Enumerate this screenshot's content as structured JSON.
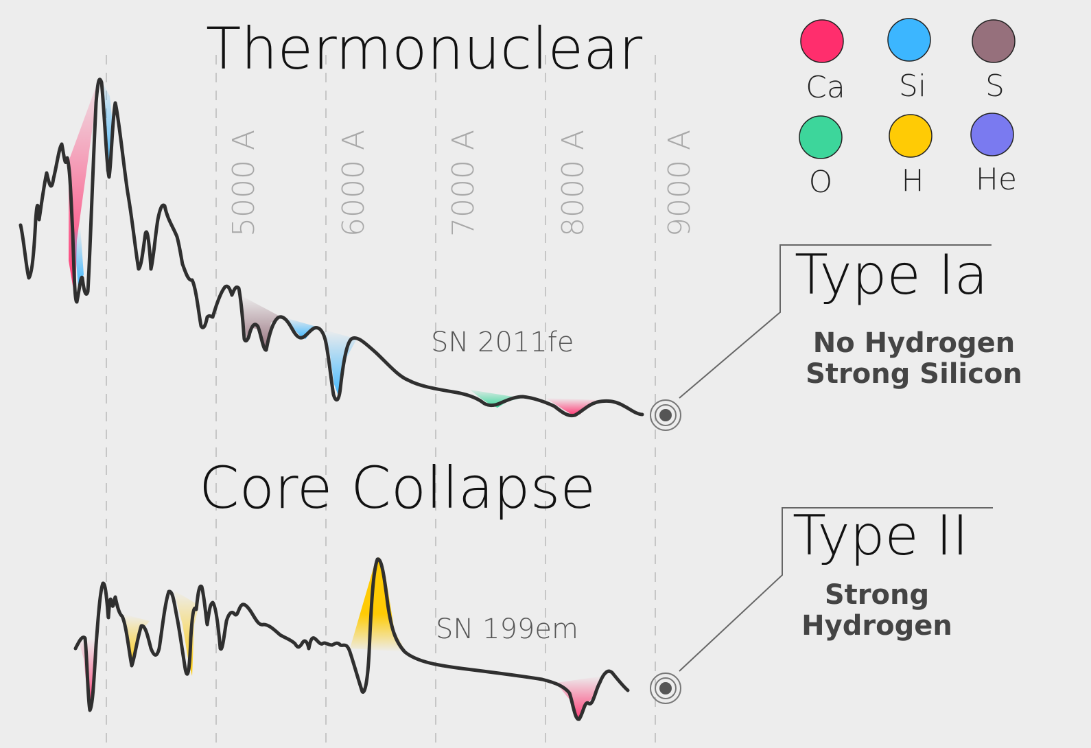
{
  "thermonuclear": {
    "title": "Thermonuclear",
    "sn_label": "SN 2011fe",
    "type_title": "Type Ia",
    "desc_line1": "No Hydrogen",
    "desc_line2": "Strong Silicon"
  },
  "core_collapse": {
    "title": "Core Collapse",
    "sn_label": "SN 199em",
    "type_title": "Type II",
    "desc_line1": "Strong",
    "desc_line2": "Hydrogen"
  },
  "wavelength_ticks": [
    "5000 A",
    "6000 A",
    "7000 A",
    "8000 A",
    "9000 A"
  ],
  "legend": [
    {
      "label": "Ca",
      "color": "#ff2e6d"
    },
    {
      "label": "Si",
      "color": "#3cb6ff"
    },
    {
      "label": "S",
      "color": "#96707c"
    },
    {
      "label": "O",
      "color": "#3dd69b"
    },
    {
      "label": "H",
      "color": "#ffcb05"
    },
    {
      "label": "He",
      "color": "#7a7af0"
    }
  ],
  "icons": {
    "marker": "target-icon"
  }
}
